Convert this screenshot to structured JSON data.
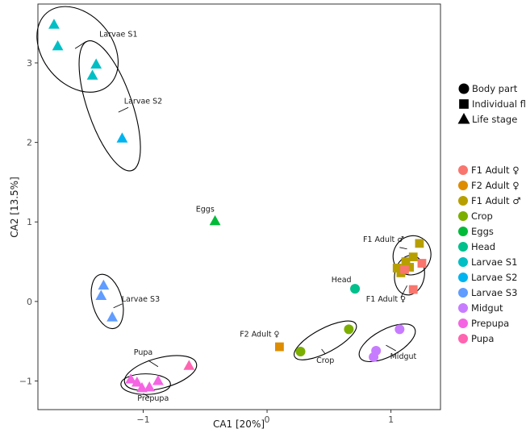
{
  "chart_data": {
    "type": "scatter",
    "xlabel": "CA1 [20%]",
    "ylabel": "CA2 [13.5%]",
    "xlim": [
      -1.85,
      1.4
    ],
    "ylim": [
      -1.36,
      3.74
    ],
    "x_ticks": [
      -1,
      0,
      1
    ],
    "y_ticks": [
      -1,
      0,
      1,
      2,
      3
    ],
    "x_tick_labels": [
      "−1",
      "0",
      "1"
    ],
    "y_tick_labels": [
      "−1",
      "0",
      "1",
      "2",
      "3"
    ],
    "grid": false,
    "legend_position": "right",
    "shape_legend": [
      {
        "label": "Body part",
        "shape": "circle"
      },
      {
        "label": "Individual fly",
        "shape": "square"
      },
      {
        "label": "Life stage",
        "shape": "triangle"
      }
    ],
    "color_legend": [
      {
        "label": "F1 Adult ♀",
        "color": "#F8766D"
      },
      {
        "label": "F2 Adult ♀",
        "color": "#DE8C00"
      },
      {
        "label": "F1 Adult ♂",
        "color": "#B79F00"
      },
      {
        "label": "Crop",
        "color": "#7CAE00"
      },
      {
        "label": "Eggs",
        "color": "#00BA38"
      },
      {
        "label": "Head",
        "color": "#00C08B"
      },
      {
        "label": "Larvae S1",
        "color": "#00BFC4"
      },
      {
        "label": "Larvae S2",
        "color": "#00B4F0"
      },
      {
        "label": "Larvae S3",
        "color": "#619CFF"
      },
      {
        "label": "Midgut",
        "color": "#C77CFF"
      },
      {
        "label": "Prepupa",
        "color": "#F564E3"
      },
      {
        "label": "Pupa",
        "color": "#FF64B0"
      }
    ],
    "series": [
      {
        "name": "Larvae S1",
        "shape": "triangle",
        "color": "#00BFC4",
        "points": [
          [
            -1.72,
            3.48
          ],
          [
            -1.69,
            3.21
          ],
          [
            -1.41,
            2.84
          ],
          [
            -1.38,
            2.98
          ]
        ]
      },
      {
        "name": "Larvae S2",
        "shape": "triangle",
        "color": "#00B4F0",
        "points": [
          [
            -1.17,
            2.05
          ]
        ]
      },
      {
        "name": "Eggs",
        "shape": "triangle",
        "color": "#00BA38",
        "points": [
          [
            -0.42,
            1.01
          ]
        ]
      },
      {
        "name": "Larvae S3",
        "shape": "triangle",
        "color": "#619CFF",
        "points": [
          [
            -1.32,
            0.2
          ],
          [
            -1.34,
            0.07
          ],
          [
            -1.25,
            -0.2
          ]
        ]
      },
      {
        "name": "Pupa",
        "shape": "triangle",
        "color": "#FF64B0",
        "points": [
          [
            -0.63,
            -0.81
          ]
        ]
      },
      {
        "name": "Prepupa",
        "shape": "triangle",
        "color": "#F564E3",
        "points": [
          [
            -1.1,
            -0.98
          ],
          [
            -1.05,
            -1.02
          ],
          [
            -1.01,
            -1.09
          ],
          [
            -0.95,
            -1.08
          ],
          [
            -0.88,
            -1.0
          ]
        ]
      },
      {
        "name": "F2 Adult ♀",
        "shape": "square",
        "color": "#DE8C00",
        "points": [
          [
            0.1,
            -0.57
          ]
        ]
      },
      {
        "name": "F1 Adult ♂",
        "shape": "square",
        "color": "#B79F00",
        "points": [
          [
            1.23,
            0.73
          ],
          [
            1.05,
            0.42
          ],
          [
            1.12,
            0.5
          ],
          [
            1.18,
            0.56
          ],
          [
            1.08,
            0.36
          ],
          [
            1.15,
            0.43
          ]
        ]
      },
      {
        "name": "F1 Adult ♀",
        "shape": "square",
        "color": "#F8766D",
        "points": [
          [
            1.25,
            0.48
          ],
          [
            1.11,
            0.4
          ],
          [
            1.18,
            0.15
          ]
        ]
      },
      {
        "name": "Head",
        "shape": "circle",
        "color": "#00C08B",
        "points": [
          [
            0.71,
            0.16
          ]
        ]
      },
      {
        "name": "Crop",
        "shape": "circle",
        "color": "#7CAE00",
        "points": [
          [
            0.27,
            -0.63
          ],
          [
            0.66,
            -0.35
          ]
        ]
      },
      {
        "name": "Midgut",
        "shape": "circle",
        "color": "#C77CFF",
        "points": [
          [
            0.86,
            -0.7
          ],
          [
            0.88,
            -0.62
          ],
          [
            1.07,
            -0.35
          ]
        ]
      }
    ],
    "ellipses": [
      {
        "cx": -1.53,
        "cy": 3.17,
        "rx": 0.28,
        "ry": 0.6,
        "rot": -40
      },
      {
        "cx": -1.27,
        "cy": 2.46,
        "rx": 0.18,
        "ry": 0.86,
        "rot": -19
      },
      {
        "cx": -1.29,
        "cy": 0.0,
        "rx": 0.12,
        "ry": 0.35,
        "rot": -15
      },
      {
        "cx": -0.86,
        "cy": -0.9,
        "rx": 0.3,
        "ry": 0.19,
        "rot": -15
      },
      {
        "cx": -0.98,
        "cy": -1.04,
        "rx": 0.2,
        "ry": 0.13,
        "rot": 0
      },
      {
        "cx": 1.17,
        "cy": 0.58,
        "rx": 0.15,
        "ry": 0.25,
        "rot": 30
      },
      {
        "cx": 1.15,
        "cy": 0.33,
        "rx": 0.12,
        "ry": 0.25,
        "rot": 10
      },
      {
        "cx": 0.47,
        "cy": -0.49,
        "rx": 0.28,
        "ry": 0.15,
        "rot": -28
      },
      {
        "cx": 0.97,
        "cy": -0.52,
        "rx": 0.25,
        "ry": 0.17,
        "rot": -28
      }
    ],
    "annotations": [
      {
        "text": "Larvae S1",
        "x": -1.2,
        "y": 3.33,
        "lx1": -1.55,
        "ly1": 3.18,
        "lx2": -1.46,
        "ly2": 3.27
      },
      {
        "text": "Larvae S2",
        "x": -1.0,
        "y": 2.49,
        "lx1": -1.2,
        "ly1": 2.38,
        "lx2": -1.12,
        "ly2": 2.44
      },
      {
        "text": "Eggs",
        "x": -0.5,
        "y": 1.13,
        "lx1": null,
        "ly1": null,
        "lx2": null,
        "ly2": null
      },
      {
        "text": "Larvae S3",
        "x": -1.02,
        "y": 0.0,
        "lx1": -1.24,
        "ly1": -0.08,
        "lx2": -1.17,
        "ly2": -0.03
      },
      {
        "text": "Pupa",
        "x": -1.0,
        "y": -0.67,
        "lx1": -0.96,
        "ly1": -0.74,
        "lx2": -0.88,
        "ly2": -0.82
      },
      {
        "text": "Prepupa",
        "x": -0.92,
        "y": -1.25,
        "lx1": -1.0,
        "ly1": -1.16,
        "lx2": -0.95,
        "ly2": -1.2
      },
      {
        "text": "F1 Adult ♂",
        "x": 0.94,
        "y": 0.75,
        "lx1": 1.07,
        "ly1": 0.68,
        "lx2": 1.13,
        "ly2": 0.66
      },
      {
        "text": "F1 Adult ♀",
        "x": 0.96,
        "y": 0.0,
        "lx1": 1.08,
        "ly1": 0.05,
        "lx2": 1.13,
        "ly2": 0.2
      },
      {
        "text": "Head",
        "x": 0.6,
        "y": 0.24,
        "lx1": null,
        "ly1": null,
        "lx2": null,
        "ly2": null
      },
      {
        "text": "F2 Adult ♀",
        "x": -0.06,
        "y": -0.44,
        "lx1": null,
        "ly1": null,
        "lx2": null,
        "ly2": null
      },
      {
        "text": "Crop",
        "x": 0.47,
        "y": -0.77,
        "lx1": 0.44,
        "ly1": -0.6,
        "lx2": 0.47,
        "ly2": -0.66
      },
      {
        "text": "Midgut",
        "x": 1.1,
        "y": -0.72,
        "lx1": 0.96,
        "ly1": -0.55,
        "lx2": 1.04,
        "ly2": -0.62
      }
    ]
  }
}
